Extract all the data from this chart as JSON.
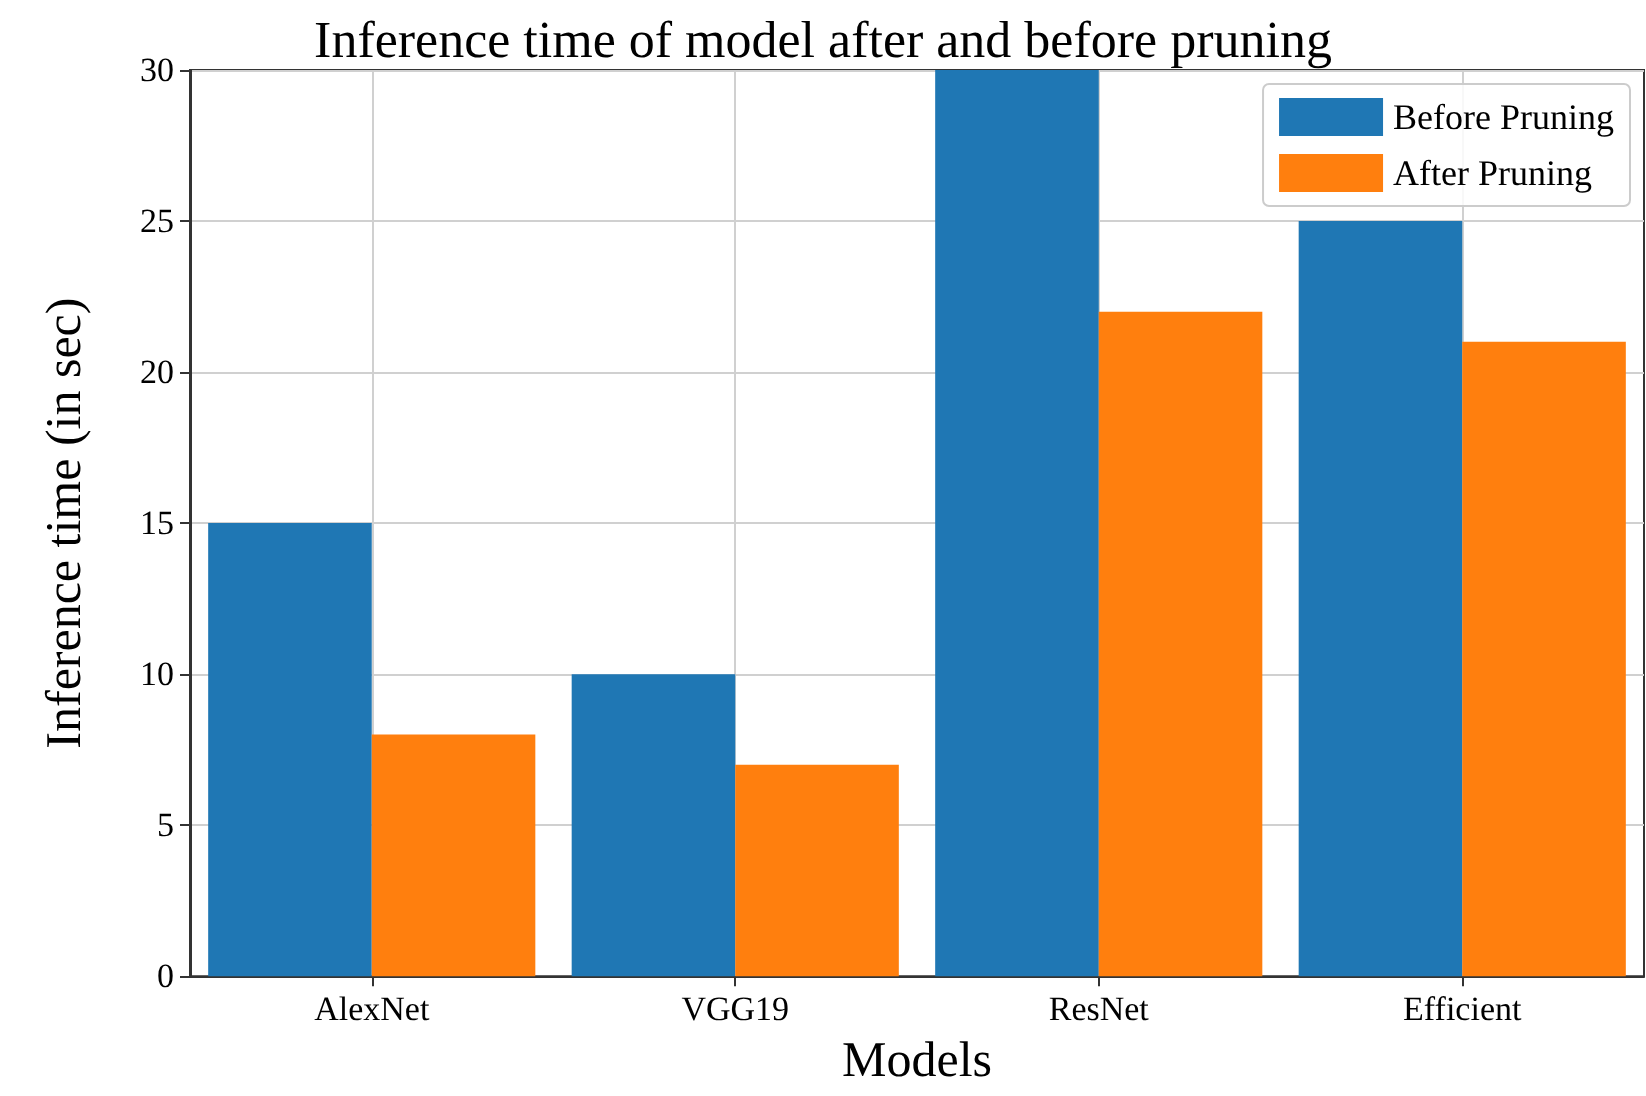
{
  "chart_data": {
    "type": "bar",
    "title": "Inference time of model after and before pruning",
    "xlabel": "Models",
    "ylabel": "Inference time (in sec)",
    "categories": [
      "AlexNet",
      "VGG19",
      "ResNet",
      "Efficient"
    ],
    "series": [
      {
        "name": "Before Pruning",
        "color": "#1f77b4",
        "values": [
          15,
          10,
          30,
          25
        ]
      },
      {
        "name": "After Pruning",
        "color": "#ff7f0e",
        "values": [
          8,
          7,
          22,
          21
        ]
      }
    ],
    "ylim": [
      0,
      30
    ],
    "yticks": [
      0,
      5,
      10,
      15,
      20,
      25,
      30
    ],
    "grid": true,
    "legend": "top right"
  }
}
